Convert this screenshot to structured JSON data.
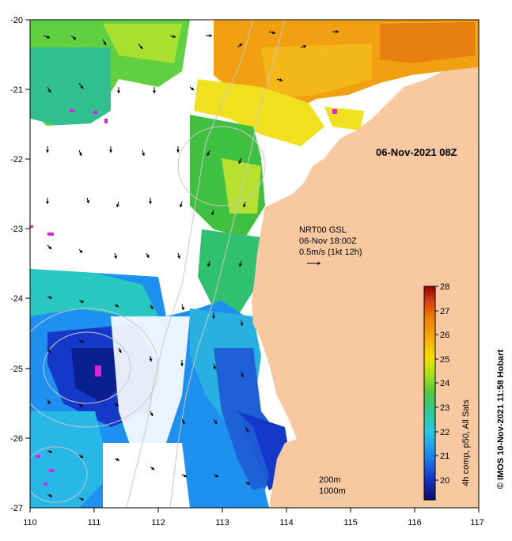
{
  "map": {
    "date_label": "06-Nov-2021 08Z",
    "x_ticks": [
      "110",
      "111",
      "112",
      "113",
      "114",
      "115",
      "116",
      "117"
    ],
    "y_ticks": [
      "-20",
      "-21",
      "-22",
      "-23",
      "-24",
      "-25",
      "-26",
      "-27"
    ],
    "current_info": {
      "line1": "NRT00 GSL",
      "line2": "06-Nov 18:00Z",
      "line3": "0.5m/s (1kt 12h)"
    },
    "bathymetry": {
      "line1": "200m",
      "line2": "1000m"
    },
    "colorbar": {
      "ticks": [
        "28",
        "27",
        "26",
        "25",
        "24",
        "23",
        "22",
        "21",
        "20"
      ],
      "label": "4h comp, p50, All Sats",
      "min": 19.2,
      "max": 28
    },
    "credit": "© IMOS 10-Nov-2021 11:58 Hobart",
    "colors": {
      "land": "#f8c8a0",
      "no_data": "#ffffff",
      "contour": "#c8c8c8",
      "arrow": "#000000",
      "flag": "#e020e0"
    }
  }
}
